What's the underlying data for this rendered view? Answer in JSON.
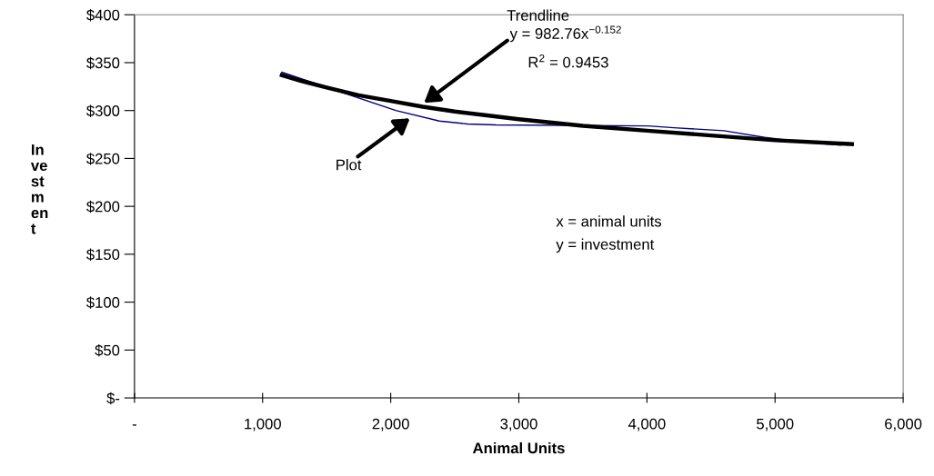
{
  "chart_data": {
    "type": "line",
    "xlabel": "Animal Units",
    "ylabel": "In\nve\nst\nm\nen\nt",
    "series": [
      {
        "name": null,
        "color": "#000080",
        "x": [
          1150,
          2040,
          2380,
          2600,
          2820,
          4010,
          4210,
          4600,
          4920,
          5220,
          5510
        ],
        "values": [
          340,
          300,
          289,
          286,
          285,
          284,
          282,
          279,
          272,
          267,
          264
        ]
      },
      {
        "name": null,
        "color": "#000000",
        "x": [
          1150,
          1300,
          1500,
          1750,
          2000,
          2250,
          2500,
          2750,
          3000,
          3500,
          4000,
          4500,
          5000,
          5600
        ],
        "values": [
          337,
          331,
          324,
          316,
          310,
          304,
          299,
          295,
          291,
          284,
          279,
          274,
          269,
          265
        ]
      }
    ],
    "annotations": [
      "Trendline",
      {
        "text": "y = 982.76x$^{−0.152}$",
        "x": 2260,
        "y": 308
      },
      "R$^{2}$ = 0.9453",
      {
        "text": "Plot",
        "x": 2150,
        "y": 292
      },
      "x = animal units",
      "y = investment"
    ],
    "xlim": [
      0,
      6000
    ],
    "xticks": [
      {
        "value": 0,
        "label": "-"
      },
      {
        "value": 1000,
        "label": "1,000"
      },
      {
        "value": 2000,
        "label": "2,000"
      },
      {
        "value": 3000,
        "label": "3,000"
      },
      {
        "value": 4000,
        "label": "4,000"
      },
      {
        "value": 5000,
        "label": "5,000"
      },
      {
        "value": 6000,
        "label": "6,000"
      }
    ],
    "ylim": [
      0,
      400
    ],
    "yticks": [
      {
        "value": 0,
        "label": "$-"
      },
      {
        "value": 50,
        "label": "$50"
      },
      {
        "value": 100,
        "label": "$100"
      },
      {
        "value": 150,
        "label": "$150"
      },
      {
        "value": 200,
        "label": "$200"
      },
      {
        "value": 250,
        "label": "$250"
      },
      {
        "value": 300,
        "label": "$300"
      },
      {
        "value": 350,
        "label": "$350"
      },
      {
        "value": 400,
        "label": "$400"
      }
    ],
    "grid": false,
    "legend": false
  }
}
